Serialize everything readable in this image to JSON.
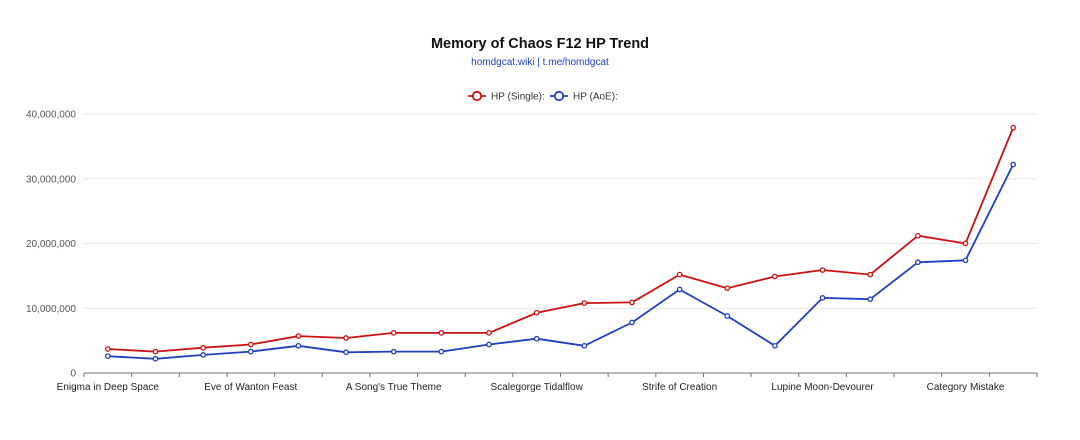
{
  "header": {
    "title": "Memory of Chaos F12 HP Trend",
    "subtitle": "homdgcat.wiki | t.me/homdgcat"
  },
  "chart_data": {
    "type": "line",
    "title": "Memory of Chaos F12 HP Trend",
    "subtitle": "homdgcat.wiki | t.me/homdgcat",
    "xlabel": "",
    "ylabel": "",
    "ylim": [
      0,
      40000000
    ],
    "y_ticks": [
      "0",
      "10,000,000",
      "20,000,000",
      "30,000,000",
      "40,000,000"
    ],
    "grid": true,
    "legend_position": "top-center",
    "x_labels_shown": [
      "Enigma in Deep Space",
      "Eve of Wanton Feast",
      "A Song's True Theme",
      "Scalegorge Tidalflow",
      "Strife of Creation",
      "Lupine Moon-Devourer",
      "Category Mistake"
    ],
    "label_every": 3,
    "point_count": 20,
    "series": [
      {
        "name": "HP (Single):",
        "color": "#cc1111",
        "values": [
          3700000,
          3300000,
          3900000,
          4400000,
          5700000,
          5400000,
          6200000,
          6200000,
          6200000,
          9300000,
          10800000,
          10900000,
          15200000,
          13100000,
          14900000,
          15900000,
          15200000,
          21200000,
          20000000,
          37900000
        ]
      },
      {
        "name": "HP (AoE):",
        "color": "#1f3fbf",
        "values": [
          2600000,
          2200000,
          2800000,
          3300000,
          4200000,
          3200000,
          3300000,
          3300000,
          4400000,
          5300000,
          4200000,
          7800000,
          12900000,
          8800000,
          4200000,
          11600000,
          11400000,
          17100000,
          17400000,
          32200000
        ]
      }
    ]
  }
}
